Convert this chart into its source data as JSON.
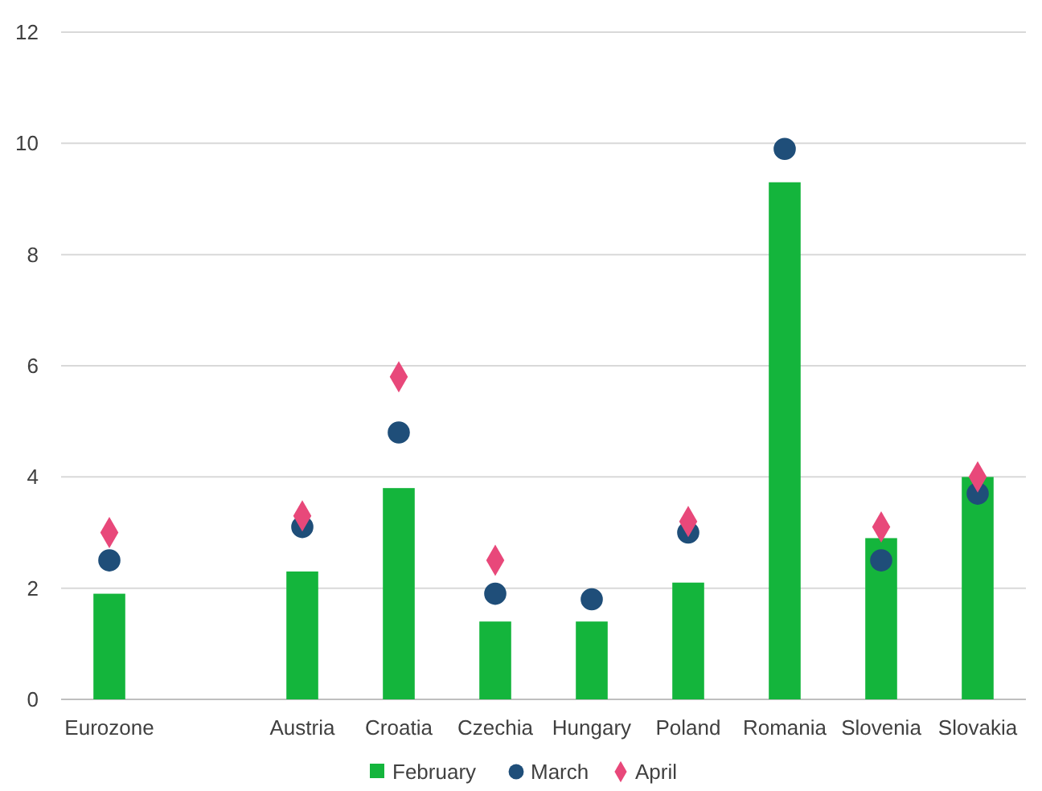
{
  "chart_data": {
    "type": "bar",
    "categories": [
      "Eurozone",
      null,
      "Austria",
      "Croatia",
      "Czechia",
      "Hungary",
      "Poland",
      "Romania",
      "Slovenia",
      "Slovakia"
    ],
    "series": [
      {
        "name": "February",
        "color": "#14b53c",
        "values": [
          1.9,
          null,
          2.3,
          3.8,
          1.4,
          1.4,
          2.1,
          9.3,
          2.9,
          4.0
        ]
      },
      {
        "name": "March",
        "type": "scatter",
        "marker": "circle",
        "color": "#1f4e79",
        "values": [
          2.5,
          null,
          3.1,
          4.8,
          1.9,
          1.8,
          3.0,
          9.9,
          2.5,
          3.7
        ]
      },
      {
        "name": "April",
        "type": "scatter",
        "marker": "diamond",
        "color": "#e8487a",
        "values": [
          3.0,
          null,
          3.3,
          5.8,
          2.5,
          null,
          3.2,
          null,
          3.1,
          4.0
        ]
      }
    ],
    "ylim": [
      0,
      12
    ],
    "yticks": [
      0,
      2,
      4,
      6,
      8,
      10,
      12
    ],
    "grid": "y",
    "legend": "bottom"
  }
}
